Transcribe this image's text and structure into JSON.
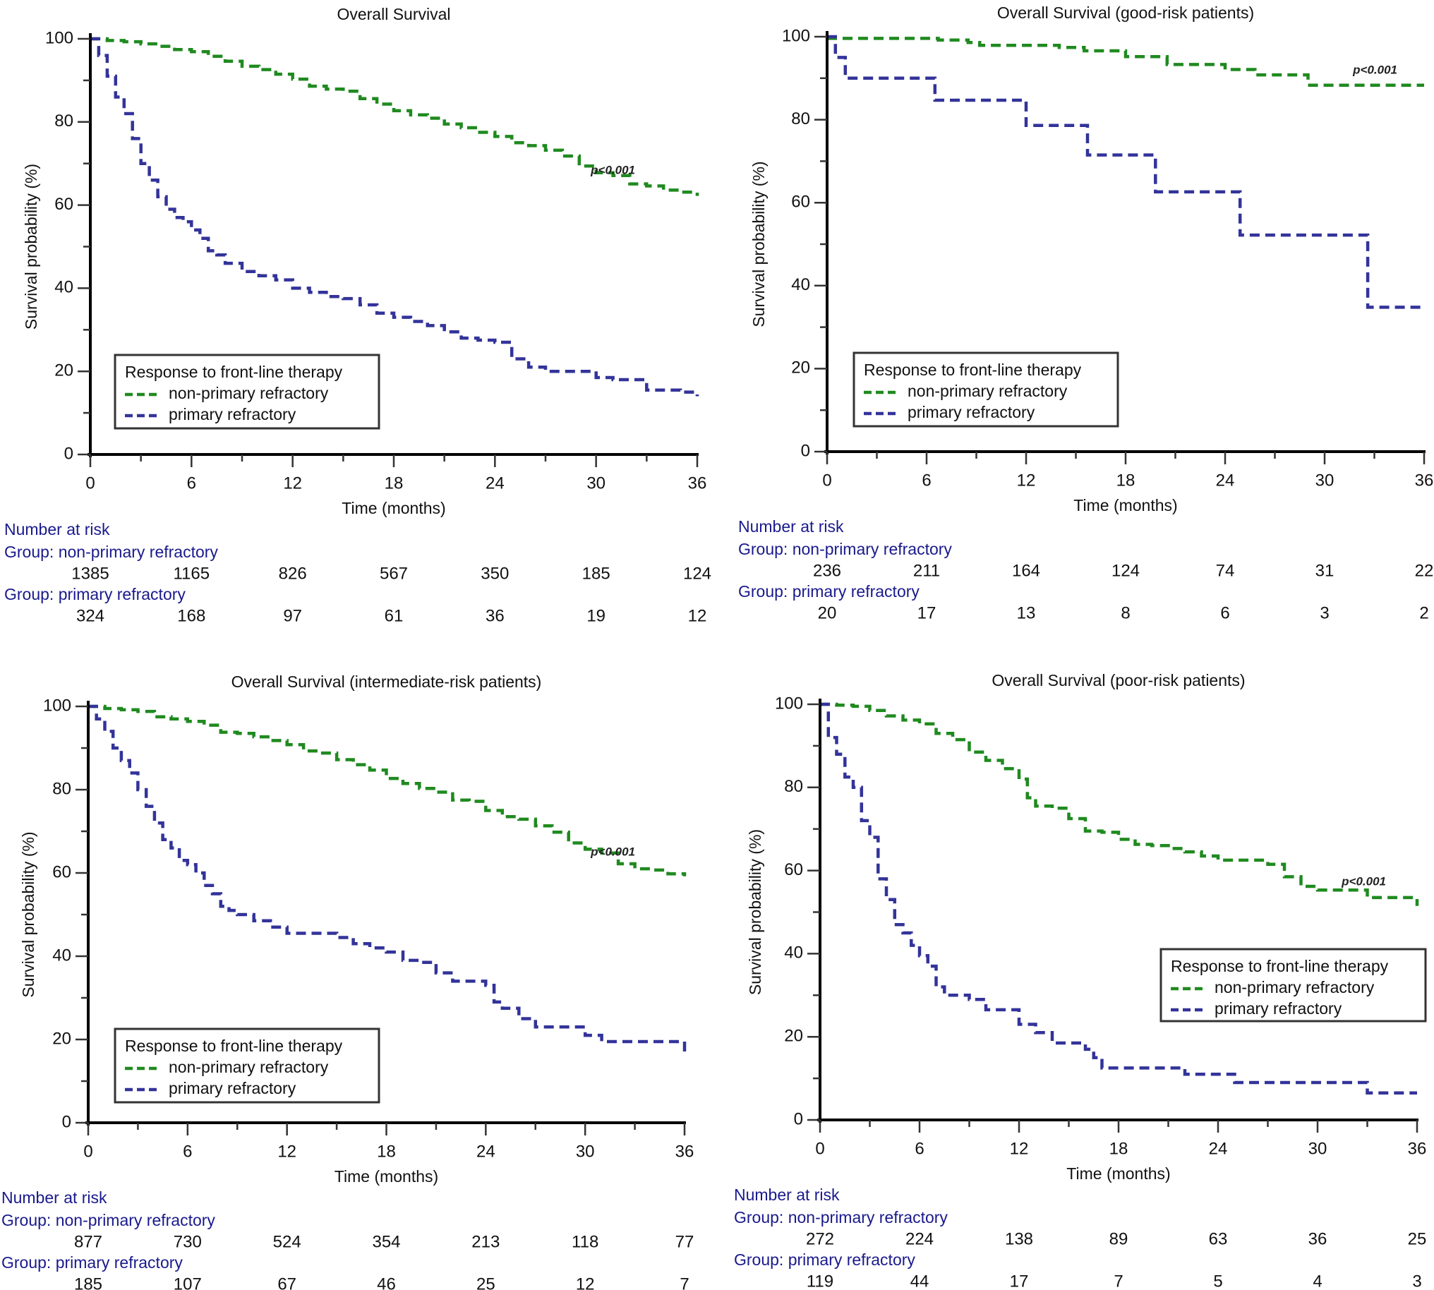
{
  "colors": {
    "non_primary": "#1f8a1f",
    "primary": "#33339a",
    "risk_text": "#1a1a8c",
    "axis": "#000000"
  },
  "chart_data": [
    {
      "type": "line",
      "title": "Overall Survival",
      "xlabel": "Time (months)",
      "ylabel": "Survival probability (%)",
      "xlim": [
        0,
        36
      ],
      "ylim": [
        0,
        100
      ],
      "x_ticks": [
        0,
        6,
        12,
        18,
        24,
        30,
        36
      ],
      "y_ticks": [
        0,
        20,
        40,
        60,
        80,
        100
      ],
      "grid": false,
      "annotation": "p<0.001",
      "legend": {
        "title": "Response to front-line therapy",
        "placement": "bottom-left",
        "entries": [
          "non-primary refractory",
          "primary refractory"
        ]
      },
      "series": [
        {
          "name": "non-primary refractory",
          "key": "non_primary",
          "x": [
            0,
            1,
            2,
            3,
            4,
            5,
            6,
            7,
            8,
            9,
            10,
            11,
            12,
            13,
            14,
            15,
            16,
            17,
            18,
            19,
            20,
            21,
            22,
            23,
            24,
            25,
            26,
            27,
            28,
            29,
            30,
            31,
            32,
            33,
            34,
            35,
            36
          ],
          "y": [
            100,
            99.6,
            99.3,
            98.8,
            98.2,
            97.4,
            96.9,
            95.8,
            94.6,
            93.4,
            92.6,
            91.5,
            90.3,
            88.6,
            87.9,
            87.4,
            85.6,
            84.3,
            82.7,
            81.7,
            80.9,
            79.5,
            78.6,
            77.5,
            76.5,
            75.0,
            74.3,
            73.2,
            71.8,
            69.4,
            67.8,
            67.1,
            65.1,
            64.6,
            63.6,
            63.1,
            62.2
          ]
        },
        {
          "name": "primary refractory",
          "key": "primary",
          "x": [
            0,
            0.5,
            1,
            1.5,
            2,
            2.5,
            3,
            3.5,
            4,
            4.5,
            5,
            5.5,
            6,
            6.5,
            7,
            7.5,
            8,
            9,
            10,
            11,
            12,
            13,
            14,
            15,
            16,
            17,
            18,
            19,
            20,
            21,
            22,
            23,
            24,
            25,
            26,
            27,
            28,
            29,
            30,
            31,
            32,
            33,
            34,
            35,
            36
          ],
          "y": [
            100,
            96,
            91,
            86,
            82,
            76,
            70,
            66,
            62,
            59,
            57,
            56,
            54,
            52,
            49,
            48,
            46,
            44,
            43,
            42,
            40,
            39,
            38,
            37.5,
            36,
            34,
            33,
            32,
            31,
            29.5,
            28,
            27.5,
            27,
            23,
            21,
            20,
            20,
            20,
            18.5,
            18,
            18,
            15.5,
            15.5,
            15,
            14
          ]
        }
      ],
      "risk_table": {
        "header": "Number at risk",
        "groups": [
          {
            "label": "Group: non-primary refractory",
            "values": [
              1385,
              1165,
              826,
              567,
              350,
              185,
              124
            ]
          },
          {
            "label": "Group: primary refractory",
            "values": [
              324,
              168,
              97,
              61,
              36,
              19,
              12
            ]
          }
        ]
      }
    },
    {
      "type": "line",
      "title": "Overall Survival (good-risk patients)",
      "xlabel": "Time (months)",
      "ylabel": "Survival probability (%)",
      "xlim": [
        0,
        36
      ],
      "ylim": [
        0,
        100
      ],
      "x_ticks": [
        0,
        6,
        12,
        18,
        24,
        30,
        36
      ],
      "y_ticks": [
        0,
        20,
        40,
        60,
        80,
        100
      ],
      "grid": false,
      "annotation": "p<0.001",
      "legend": {
        "title": "Response to front-line therapy",
        "placement": "bottom-left",
        "entries": [
          "non-primary refractory",
          "primary refractory"
        ]
      },
      "series": [
        {
          "name": "non-primary refractory",
          "key": "non_primary",
          "x": [
            0,
            6.7,
            8.5,
            9.2,
            14,
            15.5,
            18,
            20.5,
            24,
            25.8,
            29,
            36
          ],
          "y": [
            99.6,
            99.2,
            98.6,
            97.9,
            97.4,
            96.6,
            95.2,
            93.3,
            92.1,
            90.8,
            88.3,
            88.3
          ]
        },
        {
          "name": "primary refractory",
          "key": "primary",
          "x": [
            0,
            0.5,
            1.1,
            6.5,
            12,
            15.7,
            19.8,
            24.9,
            32.6,
            36
          ],
          "y": [
            100,
            95,
            90,
            84.7,
            78.6,
            71.5,
            62.6,
            52.2,
            34.8,
            34.8
          ]
        }
      ],
      "risk_table": {
        "header": "Number at risk",
        "groups": [
          {
            "label": "Group: non-primary refractory",
            "values": [
              236,
              211,
              164,
              124,
              74,
              31,
              22
            ]
          },
          {
            "label": "Group: primary refractory",
            "values": [
              20,
              17,
              13,
              8,
              6,
              3,
              2
            ]
          }
        ]
      }
    },
    {
      "type": "line",
      "title": "Overall Survival (intermediate-risk patients)",
      "xlabel": "Time (months)",
      "ylabel": "Survival probability (%)",
      "xlim": [
        0,
        36
      ],
      "ylim": [
        0,
        100
      ],
      "x_ticks": [
        0,
        6,
        12,
        18,
        24,
        30,
        36
      ],
      "y_ticks": [
        0,
        20,
        40,
        60,
        80,
        100
      ],
      "grid": false,
      "annotation": "p<0.001",
      "legend": {
        "title": "Response to front-line therapy",
        "placement": "bottom-left",
        "entries": [
          "non-primary refractory",
          "primary refractory"
        ]
      },
      "series": [
        {
          "name": "non-primary refractory",
          "key": "non_primary",
          "x": [
            0,
            1,
            2,
            3,
            4,
            5,
            6,
            7,
            8,
            9,
            10,
            11,
            12,
            13,
            14,
            15,
            16,
            17,
            18,
            19,
            20,
            21,
            22,
            23,
            24,
            25,
            26,
            27,
            28,
            29,
            30,
            31,
            32,
            33,
            34,
            35,
            36
          ],
          "y": [
            100,
            99.5,
            99.2,
            98.8,
            97.5,
            97.0,
            96.4,
            95.5,
            93.8,
            93.5,
            92.7,
            91.8,
            90.8,
            89.3,
            88.8,
            87.2,
            86.0,
            84.7,
            82.7,
            81.5,
            80.3,
            79.4,
            77.5,
            77.2,
            75.0,
            73.5,
            72.9,
            71.3,
            69.8,
            67.2,
            65.7,
            64.8,
            62.2,
            61.0,
            60.7,
            59.8,
            59.2
          ]
        },
        {
          "name": "primary refractory",
          "key": "primary",
          "x": [
            0,
            0.5,
            1,
            1.5,
            2,
            2.5,
            3,
            3.5,
            4,
            4.5,
            5,
            5.5,
            6,
            6.5,
            7,
            7.5,
            8,
            8.5,
            9,
            10,
            11,
            12,
            13,
            14,
            15,
            16,
            17,
            18,
            19,
            20,
            21,
            22,
            23,
            24,
            24.5,
            25,
            26,
            27,
            28,
            29,
            30,
            31,
            32,
            33,
            34,
            35,
            36
          ],
          "y": [
            100,
            97,
            94,
            90,
            87,
            84,
            80,
            76,
            72,
            68,
            66,
            63,
            62,
            60,
            57,
            55,
            52,
            51,
            50,
            48.5,
            47,
            45.5,
            45.5,
            45.5,
            44.5,
            43,
            42,
            41,
            39,
            38.5,
            36,
            34,
            34,
            33,
            29,
            27.5,
            25,
            23,
            23,
            23,
            21,
            19.5,
            19.5,
            19.5,
            19.5,
            19.5,
            17
          ]
        }
      ],
      "risk_table": {
        "header": "Number at risk",
        "groups": [
          {
            "label": "Group: non-primary refractory",
            "values": [
              877,
              730,
              524,
              354,
              213,
              118,
              77
            ]
          },
          {
            "label": "Group: primary refractory",
            "values": [
              185,
              107,
              67,
              46,
              25,
              12,
              7
            ]
          }
        ]
      }
    },
    {
      "type": "line",
      "title": "Overall Survival (poor-risk patients)",
      "xlabel": "Time (months)",
      "ylabel": "Survival probability (%)",
      "xlim": [
        0,
        36
      ],
      "ylim": [
        0,
        100
      ],
      "x_ticks": [
        0,
        6,
        12,
        18,
        24,
        30,
        36
      ],
      "y_ticks": [
        0,
        20,
        40,
        60,
        80,
        100
      ],
      "grid": false,
      "annotation": "p<0.001",
      "legend": {
        "title": "Response to front-line therapy",
        "placement": "right",
        "entries": [
          "non-primary refractory",
          "primary refractory"
        ]
      },
      "series": [
        {
          "name": "non-primary refractory",
          "key": "non_primary",
          "x": [
            0,
            1,
            2,
            3,
            4,
            5,
            6,
            7,
            8,
            9,
            10,
            11,
            12,
            12.5,
            13,
            14,
            15,
            16,
            17,
            18,
            19,
            20,
            21,
            22,
            23,
            24,
            25,
            26,
            27,
            28,
            29,
            30,
            31,
            32,
            33,
            34,
            35,
            36
          ],
          "y": [
            100,
            99.8,
            99.5,
            98.5,
            97.2,
            96.2,
            95.3,
            93.0,
            91.5,
            88.5,
            86.5,
            84.5,
            82.0,
            77.5,
            75.5,
            75.0,
            72.5,
            69.5,
            69.2,
            67.5,
            66.3,
            66.0,
            65.3,
            64.5,
            63.5,
            62.5,
            62.5,
            62.5,
            61.5,
            58.5,
            56.2,
            55.3,
            55.3,
            55.3,
            53.5,
            53.5,
            53.5,
            51.5
          ]
        },
        {
          "name": "primary refractory",
          "key": "primary",
          "x": [
            0,
            0.5,
            1,
            1.5,
            2,
            2.5,
            3,
            3.5,
            4,
            4.5,
            5,
            5.5,
            6,
            6.5,
            7,
            7.5,
            8,
            9,
            10,
            11,
            12,
            13,
            14,
            15,
            16,
            16.5,
            17,
            20,
            22,
            24,
            25,
            28,
            31,
            33,
            36
          ],
          "y": [
            100,
            92,
            88,
            82.5,
            80,
            72,
            68,
            58,
            53,
            47,
            45,
            42,
            39.5,
            37,
            32,
            30,
            30,
            29,
            26.5,
            26.5,
            23,
            21,
            18.5,
            18.5,
            17,
            15,
            12.5,
            12.5,
            11,
            11,
            9,
            9,
            9,
            6.5,
            6.5
          ]
        }
      ],
      "risk_table": {
        "header": "Number at risk",
        "groups": [
          {
            "label": "Group: non-primary refractory",
            "values": [
              272,
              224,
              138,
              89,
              63,
              36,
              25
            ]
          },
          {
            "label": "Group: primary refractory",
            "values": [
              119,
              44,
              17,
              7,
              5,
              4,
              3
            ]
          }
        ]
      }
    }
  ]
}
